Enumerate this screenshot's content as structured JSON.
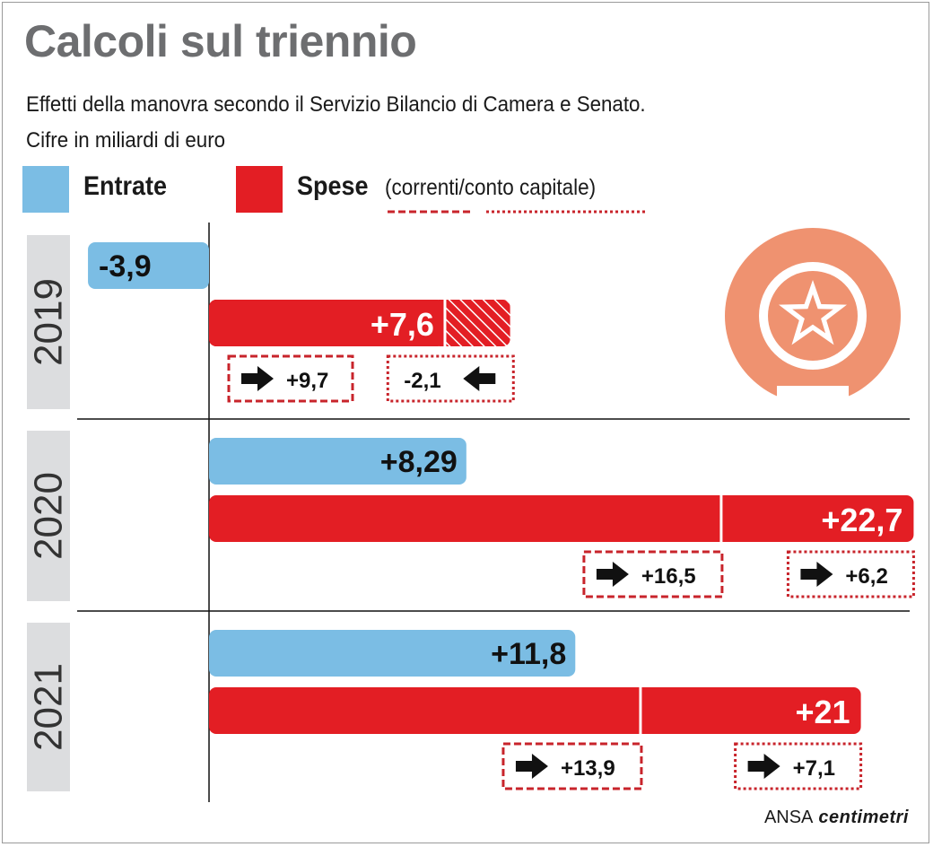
{
  "title": "Calcoli sul triennio",
  "subtitle_line1": "Effetti della manovra secondo il Servizio Bilancio di Camera e Senato.",
  "subtitle_line2": "Cifre in miliardi di euro",
  "legend": {
    "entrate": "Entrate",
    "spese": "Spese",
    "spese_note": "(correnti/conto capitale)"
  },
  "colors": {
    "entrate": "#7bbde4",
    "spese": "#e31e24",
    "year_band": "#dcdddf",
    "emblem": "#ef9270",
    "title_gray": "#6d6e70"
  },
  "source": {
    "agency": "ANSA",
    "brand": "centimetri"
  },
  "emblem_icon": "italian-republic-emblem-icon",
  "chart_data": {
    "type": "bar",
    "orientation": "horizontal",
    "unit": "miliardi di euro",
    "years": [
      {
        "year": "2019",
        "entrate": {
          "value": -3.9,
          "label": "-3,9"
        },
        "spese": {
          "value": 7.6,
          "label": "+7,6",
          "correnti": {
            "value": 9.7,
            "label": "+9,7"
          },
          "conto_capitale": {
            "value": -2.1,
            "label": "-2,1"
          }
        }
      },
      {
        "year": "2020",
        "entrate": {
          "value": 8.29,
          "label": "+8,29"
        },
        "spese": {
          "value": 22.7,
          "label": "+22,7",
          "correnti": {
            "value": 16.5,
            "label": "+16,5"
          },
          "conto_capitale": {
            "value": 6.2,
            "label": "+6,2"
          }
        }
      },
      {
        "year": "2021",
        "entrate": {
          "value": 11.8,
          "label": "+11,8"
        },
        "spese": {
          "value": 21,
          "label": "+21",
          "correnti": {
            "value": 13.9,
            "label": "+13,9"
          },
          "conto_capitale": {
            "value": 7.1,
            "label": "+7,1"
          }
        }
      }
    ]
  }
}
